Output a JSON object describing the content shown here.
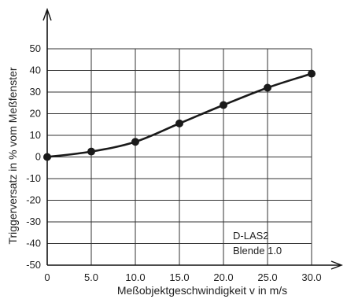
{
  "chart_data": {
    "type": "line",
    "xlabel": "Meßobjektgeschwindigkeit v in m/s",
    "ylabel": "Triggerversatz in % vom Meßfenster",
    "xlim": [
      0,
      30
    ],
    "ylim": [
      -50,
      50
    ],
    "x_ticks": [
      "0",
      "5.0",
      "10.0",
      "15.0",
      "20.0",
      "25.0",
      "30.0"
    ],
    "y_ticks": [
      "50",
      "40",
      "30",
      "20",
      "10",
      "0",
      "-10",
      "-20",
      "-30",
      "-40",
      "-50"
    ],
    "grid": true,
    "series": [
      {
        "x": [
          0,
          5,
          10,
          15,
          20,
          25,
          30
        ],
        "y": [
          0,
          2.5,
          7,
          15.5,
          24,
          32,
          38.5
        ]
      }
    ],
    "annotation": [
      "D-LAS2",
      "Blende 1.0"
    ],
    "colors": {
      "line": "#1a1a1a",
      "grid": "#333333"
    }
  }
}
